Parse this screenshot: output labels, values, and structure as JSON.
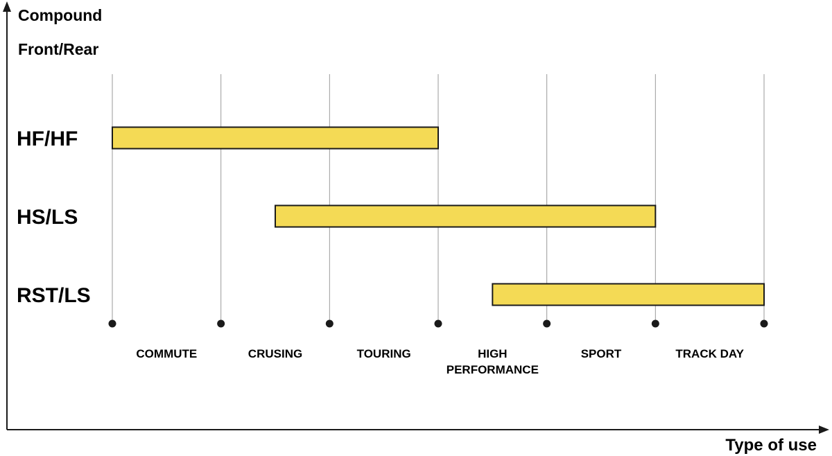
{
  "chart_data": {
    "type": "range-bar",
    "ylabel": [
      "Compound",
      "Front/Rear"
    ],
    "xlabel": "Type of use",
    "categories": [
      [
        "COMMUTE"
      ],
      [
        "CRUSING"
      ],
      [
        "TOURING"
      ],
      [
        "HIGH",
        "PERFORMANCE"
      ],
      [
        "SPORT"
      ],
      [
        "TRACK DAY"
      ]
    ],
    "x_range": [
      0,
      6
    ],
    "series": [
      {
        "name": "HF/HF",
        "start": 0,
        "end": 3
      },
      {
        "name": "HS/LS",
        "start": 1.5,
        "end": 5
      },
      {
        "name": "RST/LS",
        "start": 3.5,
        "end": 6
      }
    ],
    "grid": true,
    "colors": {
      "bar_fill": "#f4da55",
      "bar_stroke": "#1a1a1a",
      "gridline": "#9a9a9a",
      "axis": "#1a1a1a",
      "text": "#1a1a1a"
    }
  }
}
